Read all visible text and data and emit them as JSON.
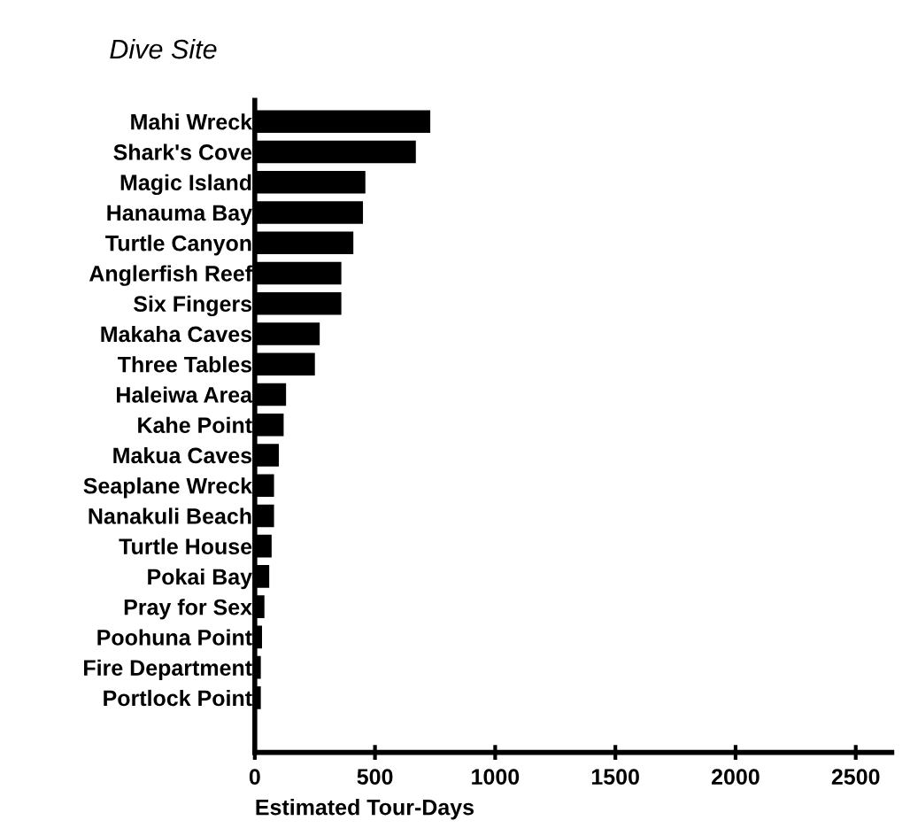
{
  "chart_data": {
    "type": "bar",
    "orientation": "horizontal",
    "title": "Dive Site",
    "xlabel": "Estimated Tour-Days",
    "categories": [
      "Mahi Wreck",
      "Shark's Cove",
      "Magic Island",
      "Hanauma Bay",
      "Turtle Canyon",
      "Anglerfish Reef",
      "Six Fingers",
      "Makaha Caves",
      "Three Tables",
      "Haleiwa Area",
      "Kahe Point",
      "Makua Caves",
      "Seaplane Wreck",
      "Nanakuli Beach",
      "Turtle House",
      "Pokai Bay",
      "Pray for Sex",
      "Poohuna Point",
      "Fire Department",
      "Portlock Point"
    ],
    "values": [
      730,
      670,
      460,
      450,
      410,
      360,
      360,
      270,
      250,
      130,
      120,
      100,
      80,
      80,
      70,
      60,
      40,
      30,
      25,
      25
    ],
    "color": "#000000",
    "xlim": [
      0,
      2650
    ],
    "xticks": [
      0,
      500,
      1000,
      1500,
      2000,
      2500
    ],
    "grid": false,
    "legend": false
  }
}
